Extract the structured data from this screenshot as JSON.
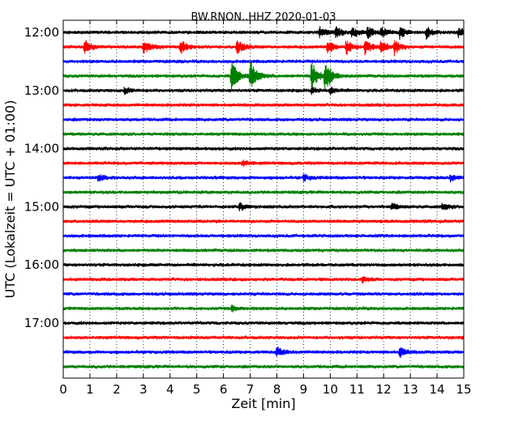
{
  "chart_data": {
    "type": "line",
    "title": "BW.RNON..HHZ 2020-01-03",
    "xlabel": "Zeit  [min]",
    "ylabel": "UTC (Lokalzeit = UTC + 01:00)",
    "xlim": [
      0,
      15
    ],
    "x_ticks": [
      "0",
      "1",
      "2",
      "3",
      "4",
      "5",
      "6",
      "7",
      "8",
      "9",
      "10",
      "11",
      "12",
      "13",
      "14",
      "15"
    ],
    "y_ticks": [
      "12:00",
      "13:00",
      "14:00",
      "15:00",
      "16:00",
      "17:00"
    ],
    "grid": "vertical dotted at each minute",
    "trace_colors": [
      "#000000",
      "#ff0000",
      "#0000ff",
      "#008000"
    ],
    "trace_start_times": [
      "12:00",
      "12:15",
      "12:30",
      "12:45",
      "13:00",
      "13:15",
      "13:30",
      "13:45",
      "14:00",
      "14:15",
      "14:30",
      "14:45",
      "15:00",
      "15:15",
      "15:30",
      "15:45",
      "16:00",
      "16:15",
      "16:30",
      "16:45",
      "17:00",
      "17:15",
      "17:30",
      "17:45"
    ],
    "events": [
      {
        "trace": "12:00",
        "minutes": [
          9.6,
          10.2,
          10.8,
          11.4,
          11.9,
          12.6,
          13.6,
          14.8
        ],
        "amplitude": "medium"
      },
      {
        "trace": "12:15",
        "minutes": [
          0.8,
          3.0,
          4.4,
          6.5,
          9.9,
          10.6,
          11.3,
          11.9,
          12.4
        ],
        "amplitude": "medium-large"
      },
      {
        "trace": "12:45",
        "minutes": [
          6.3,
          7.0,
          9.3,
          9.8
        ],
        "amplitude": "large"
      },
      {
        "trace": "13:00",
        "minutes": [
          2.3,
          9.3,
          10.0
        ],
        "amplitude": "small"
      },
      {
        "trace": "14:15",
        "minutes": [
          6.7
        ],
        "amplitude": "small"
      },
      {
        "trace": "14:30",
        "minutes": [
          1.3,
          9.0,
          14.5
        ],
        "amplitude": "small"
      },
      {
        "trace": "15:00",
        "minutes": [
          6.6,
          12.3,
          14.2
        ],
        "amplitude": "small"
      },
      {
        "trace": "16:15",
        "minutes": [
          11.2
        ],
        "amplitude": "small"
      },
      {
        "trace": "16:45",
        "minutes": [
          6.3
        ],
        "amplitude": "small"
      },
      {
        "trace": "17:30",
        "minutes": [
          8.0,
          12.6
        ],
        "amplitude": "small-medium"
      }
    ]
  }
}
